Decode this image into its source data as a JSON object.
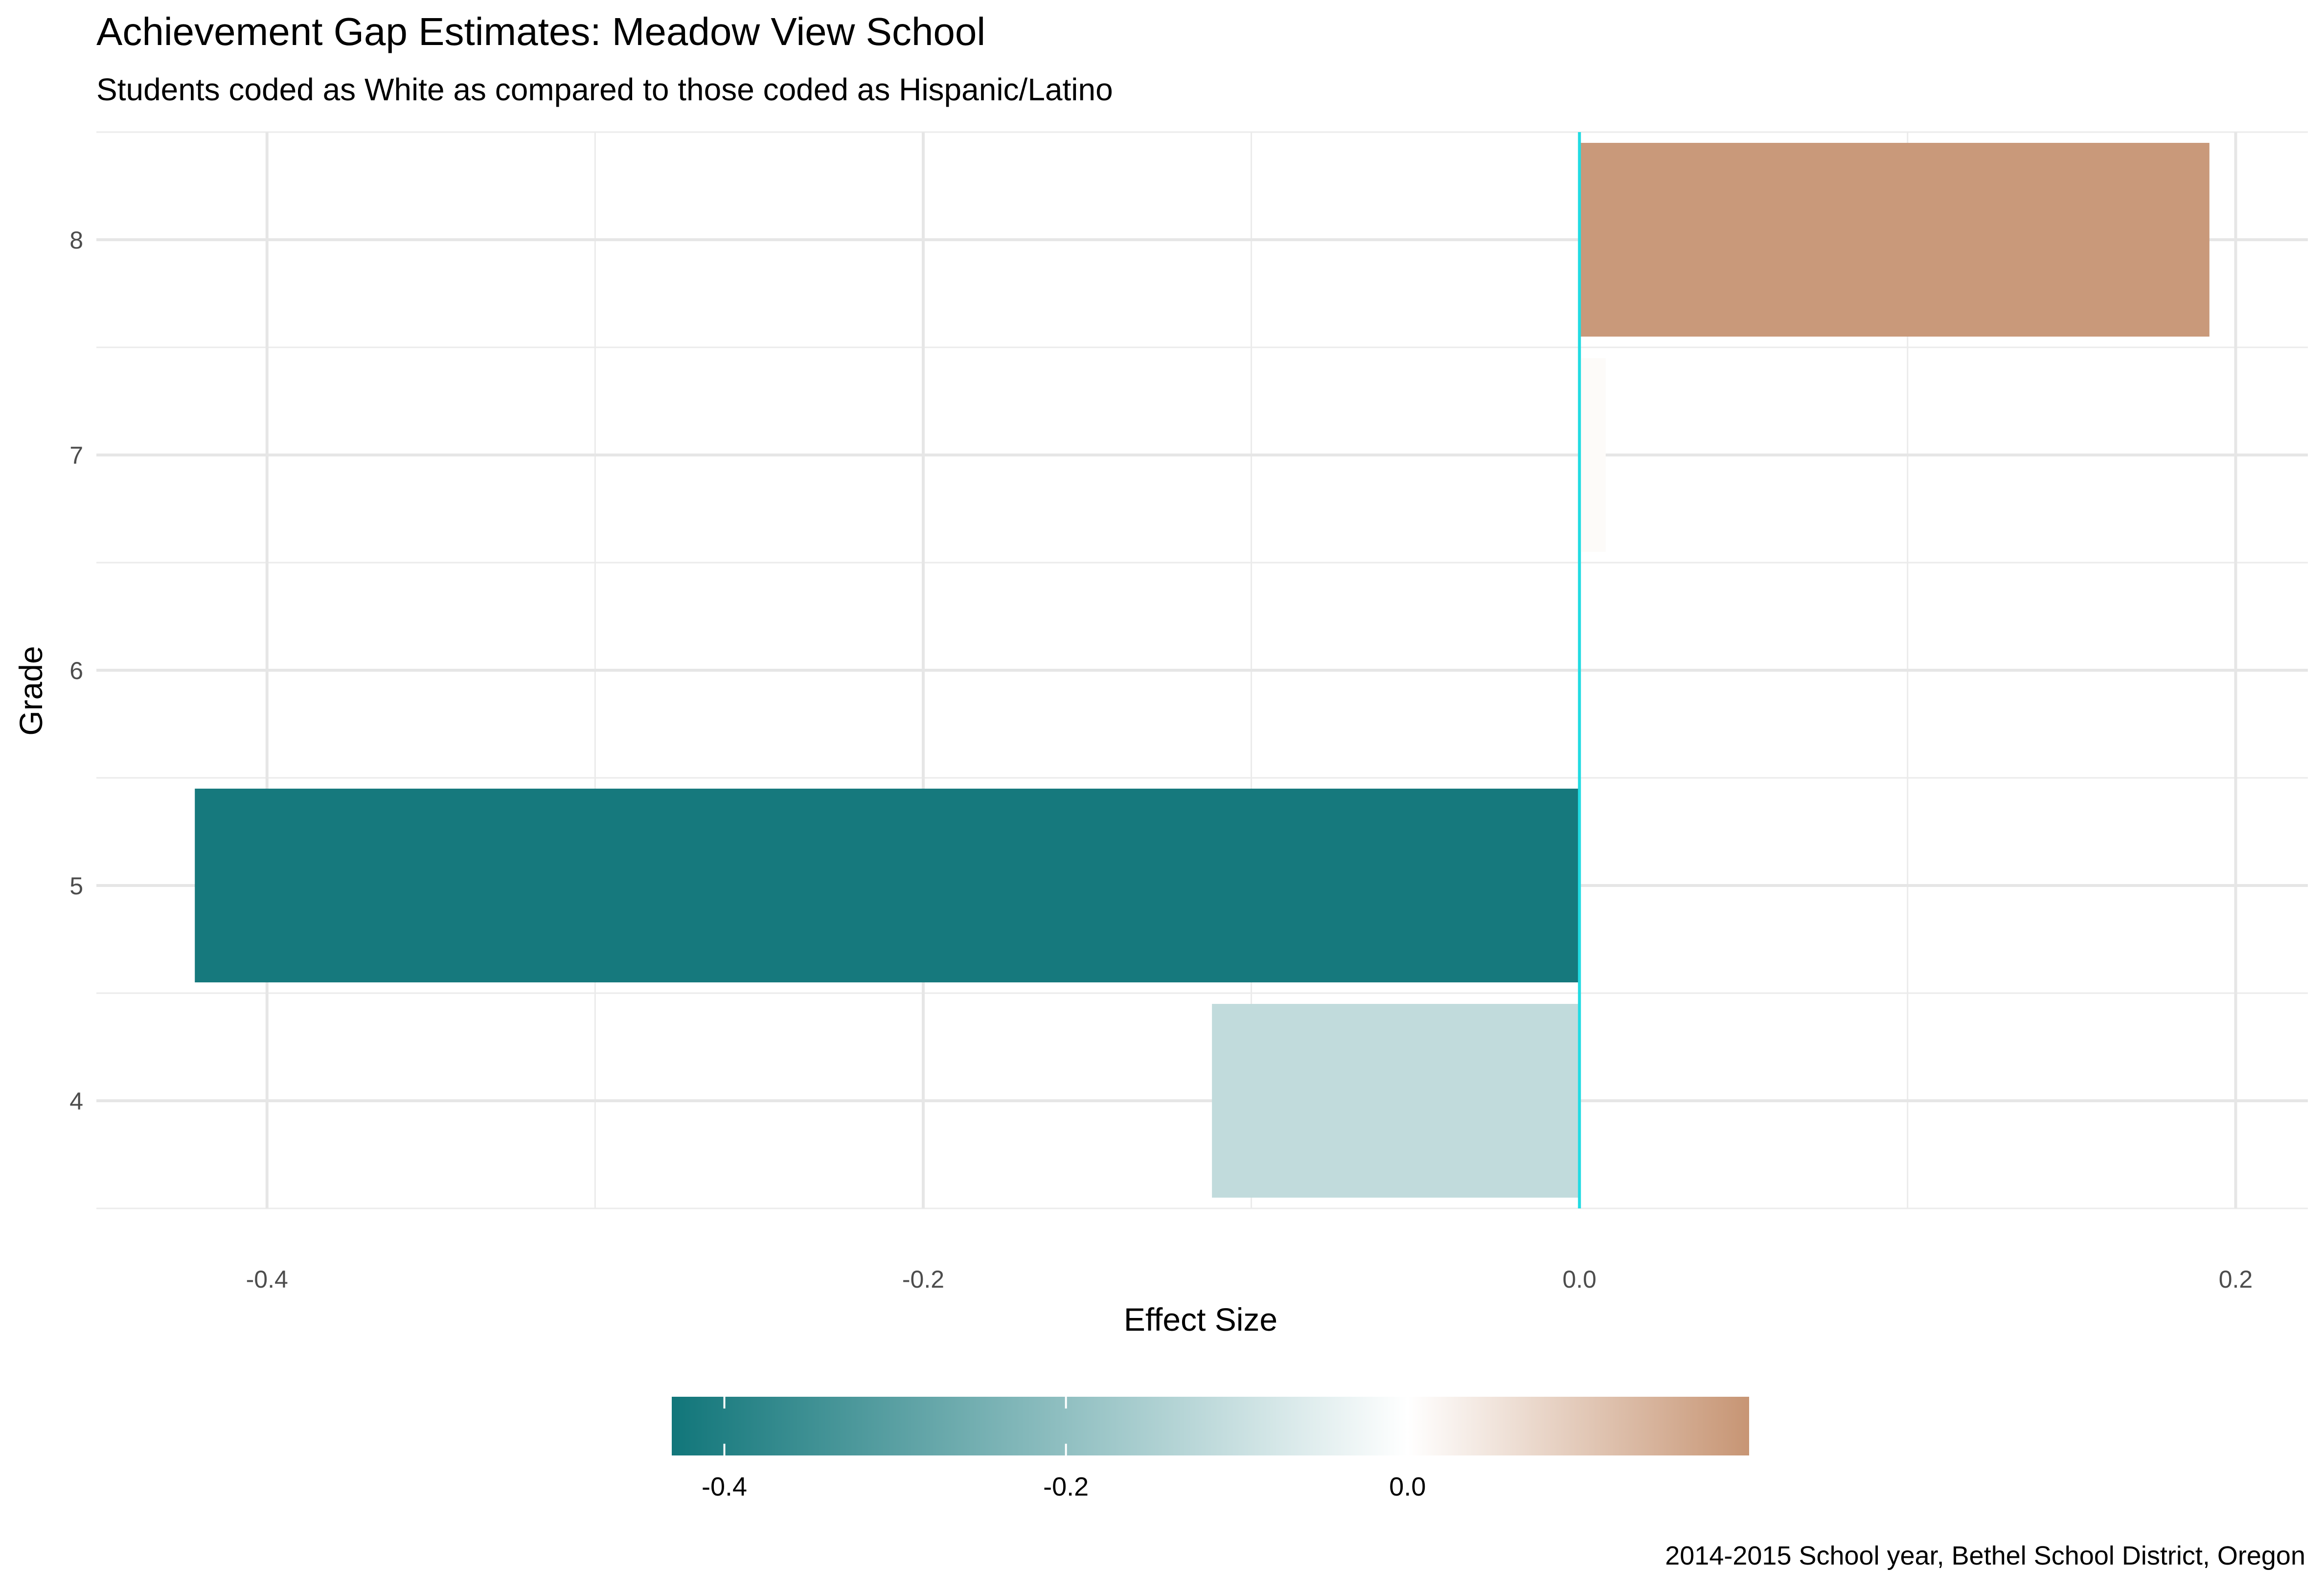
{
  "chart_data": {
    "type": "bar",
    "orientation": "horizontal",
    "title": "Achievement Gap Estimates: Meadow View School",
    "subtitle": "Students coded as White as compared to those coded as Hispanic/Latino",
    "xlabel": "Effect Size",
    "ylabel": "Grade",
    "caption": "2014-2015 School year, Bethel School District, Oregon",
    "categories": [
      "4",
      "5",
      "6",
      "7",
      "8"
    ],
    "values": [
      -0.112,
      -0.422,
      null,
      0.008,
      0.192
    ],
    "xlim": [
      -0.452,
      0.222
    ],
    "xticks": [
      -0.4,
      -0.2,
      0.0,
      0.2
    ],
    "xtick_labels": [
      "-0.4",
      "-0.2",
      "0.0",
      "0.2"
    ],
    "reference_line": {
      "x": 0.0,
      "color": "#22dce3"
    },
    "grid": true,
    "legend": {
      "type": "colorbar",
      "placement": "bottom",
      "range": [
        -0.4308,
        0.2
      ],
      "ticks": [
        -0.4,
        -0.2,
        0.0
      ],
      "tick_labels": [
        "-0.4",
        "-0.2",
        "0.0"
      ],
      "colors": {
        "low": "#11767a",
        "mid": "#ffffff",
        "high": "#c79574"
      }
    }
  }
}
